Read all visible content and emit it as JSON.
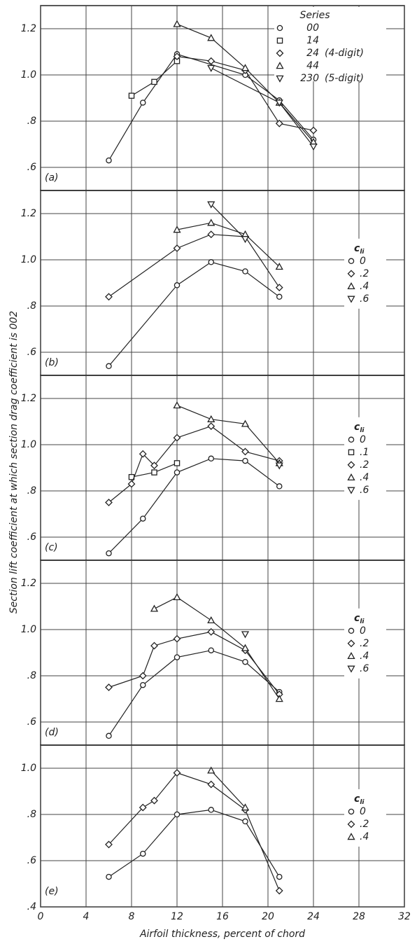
{
  "y_label": "Section lift coefficient at which section drag coefficient is 002",
  "x_label": "Airfoil thickness, percent of chord",
  "chart_data": [
    {
      "type": "line",
      "label": "(a)",
      "xlim": [
        0,
        32
      ],
      "xticks": [
        0,
        4,
        8,
        12,
        16,
        20,
        24,
        28,
        32
      ],
      "ylim": [
        0.5,
        1.3
      ],
      "yticks": [
        {
          "value": 0.6,
          "label": ".6"
        },
        {
          "value": 0.8,
          "label": ".8"
        },
        {
          "value": 1.0,
          "label": "1.0"
        },
        {
          "value": 1.2,
          "label": "1.2"
        }
      ],
      "grid": true,
      "legend": "upper right",
      "legend_title": "Series",
      "annotations": [
        "(4-digit)",
        "(5-digit)"
      ],
      "series": [
        {
          "name": "00",
          "marker": "circle",
          "color": "#222",
          "x": [
            6,
            9,
            12,
            18,
            21,
            24
          ],
          "values": [
            0.63,
            0.88,
            1.09,
            1.0,
            0.89,
            0.72
          ]
        },
        {
          "name": "14",
          "marker": "square",
          "color": "#222",
          "x": [
            8,
            10,
            12
          ],
          "values": [
            0.91,
            0.97,
            1.06
          ]
        },
        {
          "name": "24",
          "marker": "diamond",
          "color": "#222",
          "x": [
            12,
            15,
            18,
            21,
            24
          ],
          "values": [
            1.08,
            1.06,
            1.02,
            0.79,
            0.76
          ]
        },
        {
          "name": "44",
          "marker": "triangle-up",
          "color": "#222",
          "x": [
            12,
            15,
            18,
            21,
            24
          ],
          "values": [
            1.22,
            1.16,
            1.03,
            0.88,
            0.71
          ]
        },
        {
          "name": "230",
          "marker": "triangle-down",
          "color": "#222",
          "x": [
            15,
            21,
            24
          ],
          "values": [
            1.03,
            0.88,
            0.69
          ]
        }
      ]
    },
    {
      "type": "line",
      "label": "(b)",
      "xlim": [
        0,
        32
      ],
      "xticks": [
        0,
        4,
        8,
        12,
        16,
        20,
        24,
        28,
        32
      ],
      "ylim": [
        0.5,
        1.3
      ],
      "yticks": [
        {
          "value": 0.6,
          "label": ".6"
        },
        {
          "value": 0.8,
          "label": ".8"
        },
        {
          "value": 1.0,
          "label": "1.0"
        },
        {
          "value": 1.2,
          "label": "1.2"
        }
      ],
      "grid": true,
      "legend": "right",
      "legend_title": {
        "main": "c",
        "sub": "li"
      },
      "series": [
        {
          "name": "0",
          "marker": "circle",
          "color": "#222",
          "x": [
            6,
            12,
            15,
            18,
            21
          ],
          "values": [
            0.54,
            0.89,
            0.99,
            0.95,
            0.84
          ]
        },
        {
          "name": ".2",
          "marker": "diamond",
          "color": "#222",
          "x": [
            6,
            12,
            15,
            18,
            21
          ],
          "values": [
            0.84,
            1.05,
            1.11,
            1.1,
            0.88
          ]
        },
        {
          "name": ".4",
          "marker": "triangle-up",
          "color": "#222",
          "x": [
            12,
            15,
            18,
            21
          ],
          "values": [
            1.13,
            1.16,
            1.11,
            0.97
          ]
        },
        {
          "name": ".6",
          "marker": "triangle-down",
          "color": "#222",
          "x": [
            15,
            18
          ],
          "values": [
            1.24,
            1.09
          ]
        }
      ]
    },
    {
      "type": "line",
      "label": "(c)",
      "xlim": [
        0,
        32
      ],
      "xticks": [
        0,
        4,
        8,
        12,
        16,
        20,
        24,
        28,
        32
      ],
      "ylim": [
        0.5,
        1.3
      ],
      "yticks": [
        {
          "value": 0.6,
          "label": ".6"
        },
        {
          "value": 0.8,
          "label": ".8"
        },
        {
          "value": 1.0,
          "label": "1.0"
        },
        {
          "value": 1.2,
          "label": "1.2"
        }
      ],
      "grid": true,
      "legend": "right",
      "legend_title": {
        "main": "c",
        "sub": "li"
      },
      "series": [
        {
          "name": "0",
          "marker": "circle",
          "color": "#222",
          "x": [
            6,
            9,
            12,
            15,
            18,
            21
          ],
          "values": [
            0.53,
            0.68,
            0.88,
            0.94,
            0.93,
            0.82
          ]
        },
        {
          "name": ".1",
          "marker": "square",
          "color": "#222",
          "x": [
            8,
            10,
            12
          ],
          "values": [
            0.86,
            0.88,
            0.92
          ]
        },
        {
          "name": ".2",
          "marker": "diamond",
          "color": "#222",
          "x": [
            6,
            8,
            9,
            10,
            12,
            15,
            18,
            21
          ],
          "values": [
            0.75,
            0.83,
            0.96,
            0.91,
            1.03,
            1.08,
            0.97,
            0.93
          ]
        },
        {
          "name": ".4",
          "marker": "triangle-up",
          "color": "#222",
          "x": [
            12,
            15,
            18,
            21
          ],
          "values": [
            1.17,
            1.11,
            1.09,
            0.92
          ]
        },
        {
          "name": ".6",
          "marker": "triangle-down",
          "color": "#222",
          "x": [
            21
          ],
          "values": [
            0.91
          ]
        }
      ]
    },
    {
      "type": "line",
      "label": "(d)",
      "xlim": [
        0,
        32
      ],
      "xticks": [
        0,
        4,
        8,
        12,
        16,
        20,
        24,
        28,
        32
      ],
      "ylim": [
        0.5,
        1.3
      ],
      "yticks": [
        {
          "value": 0.6,
          "label": ".6"
        },
        {
          "value": 0.8,
          "label": ".8"
        },
        {
          "value": 1.0,
          "label": "1.0"
        },
        {
          "value": 1.2,
          "label": "1.2"
        }
      ],
      "grid": true,
      "legend": "right",
      "legend_title": {
        "main": "c",
        "sub": "li"
      },
      "series": [
        {
          "name": "0",
          "marker": "circle",
          "color": "#222",
          "x": [
            6,
            9,
            12,
            15,
            18,
            21
          ],
          "values": [
            0.54,
            0.76,
            0.88,
            0.91,
            0.86,
            0.73
          ]
        },
        {
          "name": ".2",
          "marker": "diamond",
          "color": "#222",
          "x": [
            6,
            9,
            10,
            12,
            15,
            18,
            21
          ],
          "values": [
            0.75,
            0.8,
            0.93,
            0.96,
            0.99,
            0.91,
            0.72
          ]
        },
        {
          "name": ".4",
          "marker": "triangle-up",
          "color": "#222",
          "x": [
            10,
            12,
            15,
            18,
            21
          ],
          "values": [
            1.09,
            1.14,
            1.04,
            0.92,
            0.7
          ]
        },
        {
          "name": ".6",
          "marker": "triangle-down",
          "color": "#222",
          "x": [
            18
          ],
          "values": [
            0.98
          ]
        }
      ]
    },
    {
      "type": "line",
      "label": "(e)",
      "xlim": [
        0,
        32
      ],
      "xticks": [
        0,
        4,
        8,
        12,
        16,
        20,
        24,
        28,
        32
      ],
      "ylim": [
        0.4,
        1.1
      ],
      "yticks": [
        {
          "value": 0.4,
          "label": ".4"
        },
        {
          "value": 0.6,
          "label": ".6"
        },
        {
          "value": 0.8,
          "label": ".8"
        },
        {
          "value": 1.0,
          "label": "1.0"
        }
      ],
      "grid": true,
      "legend": "right",
      "legend_title": {
        "main": "c",
        "sub": "li"
      },
      "show_xtick_labels": true,
      "series": [
        {
          "name": "0",
          "marker": "circle",
          "color": "#222",
          "x": [
            6,
            9,
            12,
            15,
            18,
            21
          ],
          "values": [
            0.53,
            0.63,
            0.8,
            0.82,
            0.77,
            0.53
          ]
        },
        {
          "name": ".2",
          "marker": "diamond",
          "color": "#222",
          "x": [
            6,
            9,
            10,
            12,
            15,
            18,
            21
          ],
          "values": [
            0.67,
            0.83,
            0.86,
            0.98,
            0.93,
            0.82,
            0.47
          ]
        },
        {
          "name": ".4",
          "marker": "triangle-up",
          "color": "#222",
          "x": [
            15,
            18
          ],
          "values": [
            0.99,
            0.83
          ]
        }
      ]
    }
  ]
}
